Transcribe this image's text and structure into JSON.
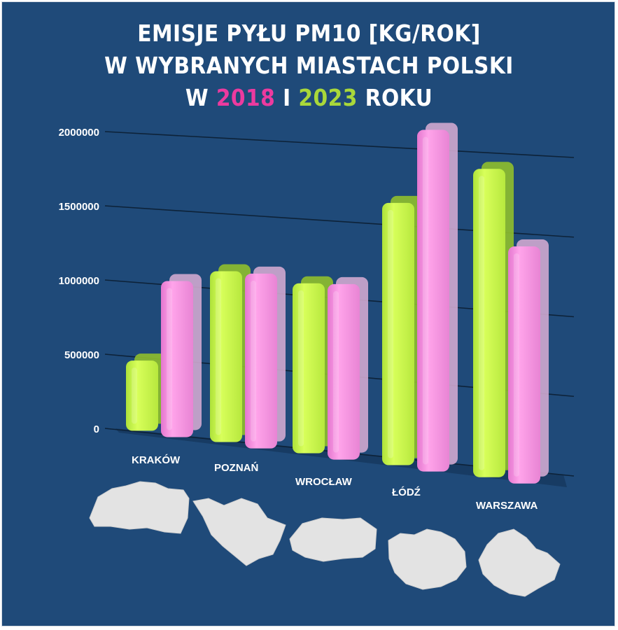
{
  "title": {
    "line1": "EMISJE PYŁU PM10 [KG/ROK]",
    "line2": "W WYBRANYCH MIASTACH POLSKI",
    "line3_prefix": "W ",
    "line3_year_a": "2018",
    "line3_mid": " I ",
    "line3_year_b": "2023",
    "line3_suffix": " ROKU"
  },
  "colors": {
    "background": "#1f4a79",
    "series_2023": "#c9f24a",
    "series_2018": "#f28fd9",
    "title_2018": "#ec3a9f",
    "title_2023": "#a9d83a"
  },
  "icons": [
    "krakow-map-icon",
    "poznan-map-icon",
    "wroclaw-map-icon",
    "lodz-map-icon",
    "warszawa-map-icon"
  ],
  "chart_data": {
    "type": "bar",
    "categories": [
      "KRAKÓW",
      "POZNAŃ",
      "WROCŁAW",
      "ŁÓDŹ",
      "WARSZAWA"
    ],
    "series": [
      {
        "name": "2023",
        "values": [
          470000,
          1130000,
          1110000,
          1690000,
          1960000
        ]
      },
      {
        "name": "2018",
        "values": [
          1040000,
          1150000,
          1140000,
          2190000,
          1500000
        ]
      }
    ],
    "yticks": [
      "0",
      "500000",
      "1000000",
      "1500000",
      "2000000"
    ],
    "ylim": [
      0,
      2000000
    ],
    "grid": true,
    "legend": "none"
  }
}
